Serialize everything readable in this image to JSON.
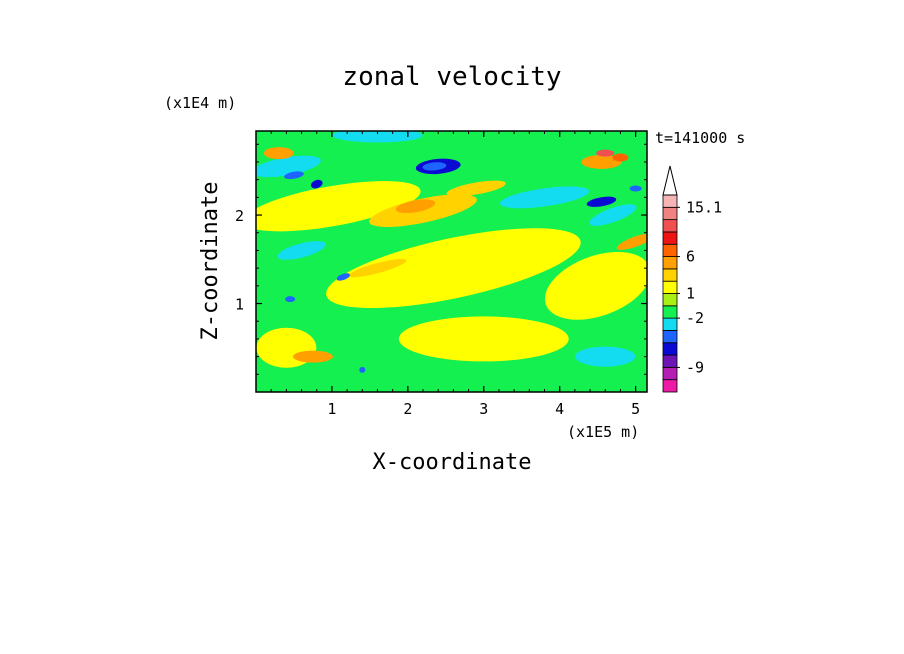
{
  "chart_data": {
    "type": "heatmap",
    "title": "zonal velocity",
    "xlabel": "X-coordinate",
    "ylabel": "Z-coordinate",
    "x_unit": "(x1E5 m)",
    "y_unit": "(x1E4 m)",
    "time_label": "t=141000 s",
    "xlim": [
      0,
      5.15
    ],
    "ylim": [
      0,
      2.95
    ],
    "x_ticks": [
      "1",
      "2",
      "3",
      "4",
      "5"
    ],
    "y_ticks": [
      "1",
      "2"
    ],
    "grid": false,
    "legend_placement": "right",
    "colorbar": {
      "levels": [
        {
          "color": "#ee1aa6"
        },
        {
          "color": "#b41eb4"
        },
        {
          "color": "#6c14b4"
        },
        {
          "color": "#0a0ad2"
        },
        {
          "color": "#1e64ff"
        },
        {
          "color": "#14dcf0"
        },
        {
          "color": "#14f050"
        },
        {
          "color": "#aaf014"
        },
        {
          "color": "#ffff00"
        },
        {
          "color": "#ffd200"
        },
        {
          "color": "#ffa000"
        },
        {
          "color": "#ff6400"
        },
        {
          "color": "#ee1414"
        },
        {
          "color": "#f05050"
        },
        {
          "color": "#f08282"
        },
        {
          "color": "#f7b4b4"
        }
      ],
      "labels": [
        "15.1",
        "6",
        "1",
        "-2",
        "-9"
      ],
      "label_values": [
        15.1,
        6,
        1,
        -2,
        -9
      ]
    }
  }
}
